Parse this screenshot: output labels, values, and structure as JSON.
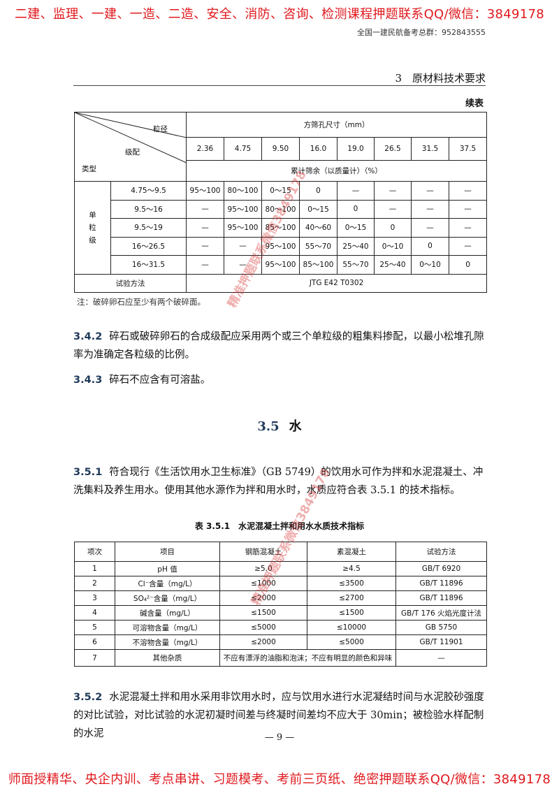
{
  "banner": {
    "top": "二建、监理、一建、一造、二造、安全、消防、咨询、检测课程押题联系QQ/微信：3849178",
    "bottom": "师面授精华、央企内训、考点串讲、习题模考、考前三页纸、绝密押题联系QQ/微信：3849178",
    "color": "#e0191e"
  },
  "header": {
    "qq_group": "全国一建民航备考总群：952843555",
    "chapter": "3　原材料技术要求"
  },
  "grading_table": {
    "continued_label": "续表",
    "corner": {
      "top": "粒径",
      "middle": "级配",
      "bottom": "类型"
    },
    "sieve_header": "方筛孔尺寸（mm）",
    "sizes": [
      "2.36",
      "4.75",
      "9.50",
      "16.0",
      "19.0",
      "26.5",
      "31.5",
      "37.5"
    ],
    "passing_header": "累计筛余（以质量计）（%）",
    "group_label": "单粒级",
    "rows": [
      {
        "range": "4.75～9.5",
        "cells": [
          "95～100",
          "80～100",
          "0～15",
          "0",
          "—",
          "—",
          "—",
          "—"
        ]
      },
      {
        "range": "9.5～16",
        "cells": [
          "—",
          "95～100",
          "80～100",
          "0～15",
          "0",
          "—",
          "—",
          "—"
        ]
      },
      {
        "range": "9.5～19",
        "cells": [
          "—",
          "95～100",
          "85～100",
          "40～60",
          "0～15",
          "0",
          "—",
          "—"
        ]
      },
      {
        "range": "16～26.5",
        "cells": [
          "—",
          "—",
          "95～100",
          "55～70",
          "25～40",
          "0～10",
          "0",
          "—"
        ]
      },
      {
        "range": "16～31.5",
        "cells": [
          "—",
          "—",
          "95～100",
          "85～100",
          "55～70",
          "25～40",
          "0～10",
          "0"
        ]
      }
    ],
    "method_label": "试验方法",
    "method_value": "JTG E42 T0302",
    "note": "注：破碎卵石应至少有两个破碎面。"
  },
  "clauses": {
    "c342": {
      "num": "3.4.2",
      "text": "碎石或破碎卵石的合成级配应采用两个或三个单粒级的粗集料掺配，以最小松堆孔隙率为准确定各粒级的比例。"
    },
    "c343": {
      "num": "3.4.3",
      "text": "碎石不应含有可溶盐。"
    },
    "c351": {
      "num": "3.5.1",
      "text": "符合现行《生活饮用水卫生标准》（GB 5749）的饮用水可作为拌和水泥混凝土、冲洗集料及养生用水。使用其他水源作为拌和用水时，水质应符合表 3.5.1 的技术指标。"
    },
    "c352": {
      "num": "3.5.2",
      "text": "水泥混凝土拌和用水采用非饮用水时，应与饮用水进行水泥凝结时间与水泥胶砂强度的对比试验，对比试验的水泥初凝时间差与终凝时间差均不应大于 30min；被检验水样配制的水泥"
    }
  },
  "section": {
    "num": "3.5",
    "title": "水"
  },
  "water_table": {
    "title": "表 3.5.1　水泥混凝土拌和用水水质技术指标",
    "headers": [
      "项次",
      "项目",
      "钢筋混凝土",
      "素混凝土",
      "试验方法"
    ],
    "rows": [
      [
        "1",
        "pH 值",
        "≥5.0",
        "≥4.5",
        "GB/T 6920"
      ],
      [
        "2",
        "Cl⁻含量（mg/L）",
        "≤1000",
        "≤3500",
        "GB/T 11896"
      ],
      [
        "3",
        "SO₄²⁻含量（mg/L）",
        "≤2000",
        "≤2700",
        "GB/T 11896"
      ],
      [
        "4",
        "碱含量（mg/L）",
        "≤1500",
        "≤1500",
        "GB/T 176 火焰光度计法"
      ],
      [
        "5",
        "可溶物含量（mg/L）",
        "≤5000",
        "≤10000",
        "GB 5750"
      ],
      [
        "6",
        "不溶物含量（mg/L）",
        "≤2000",
        "≤5000",
        "GB/T 11901"
      ]
    ],
    "last_row": {
      "num": "7",
      "item": "其他杂质",
      "requirement": "不应有漂浮的油脂和泡沫；不应有明显的颜色和异味",
      "method": "—"
    }
  },
  "watermark": "精准押题联系微信3849178",
  "page_number": "— 9 —"
}
